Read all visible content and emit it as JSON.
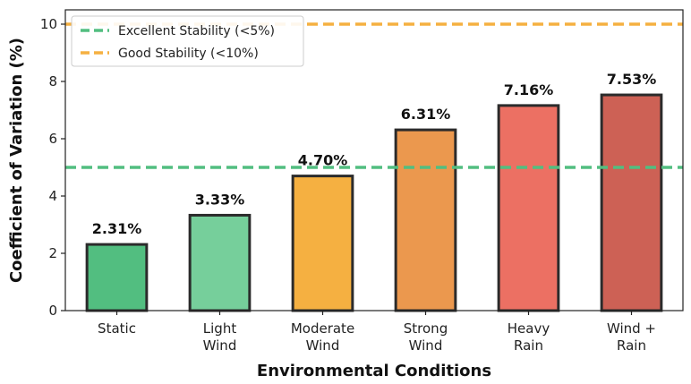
{
  "chart_data": {
    "type": "bar",
    "categories": [
      [
        "Static"
      ],
      [
        "Light",
        "Wind"
      ],
      [
        "Moderate",
        "Wind"
      ],
      [
        "Strong",
        "Wind"
      ],
      [
        "Heavy",
        "Rain"
      ],
      [
        "Wind +",
        "Rain"
      ]
    ],
    "values": [
      2.31,
      3.33,
      4.7,
      6.31,
      7.16,
      7.53
    ],
    "data_labels": [
      "2.31%",
      "3.33%",
      "4.70%",
      "6.31%",
      "7.16%",
      "7.53%"
    ],
    "bar_colors": [
      "#52be80",
      "#76cf9b",
      "#f5b041",
      "#eb984e",
      "#ec7063",
      "#cd6155"
    ],
    "bar_edge_color": "#2b2b2b",
    "xlabel": "Environmental Conditions",
    "ylabel": "Coefficient of Variation (%)",
    "ylim": [
      0,
      10.5
    ],
    "yticks": [
      0,
      2,
      4,
      6,
      8,
      10
    ],
    "grid": false,
    "reference_lines": [
      {
        "label": "Excellent Stability (<5%)",
        "value": 5,
        "color": "#52be80",
        "style": "dashed"
      },
      {
        "label": "Good Stability (<10%)",
        "value": 10,
        "color": "#f5b041",
        "style": "dashed"
      }
    ],
    "legend_position": "top-left"
  }
}
